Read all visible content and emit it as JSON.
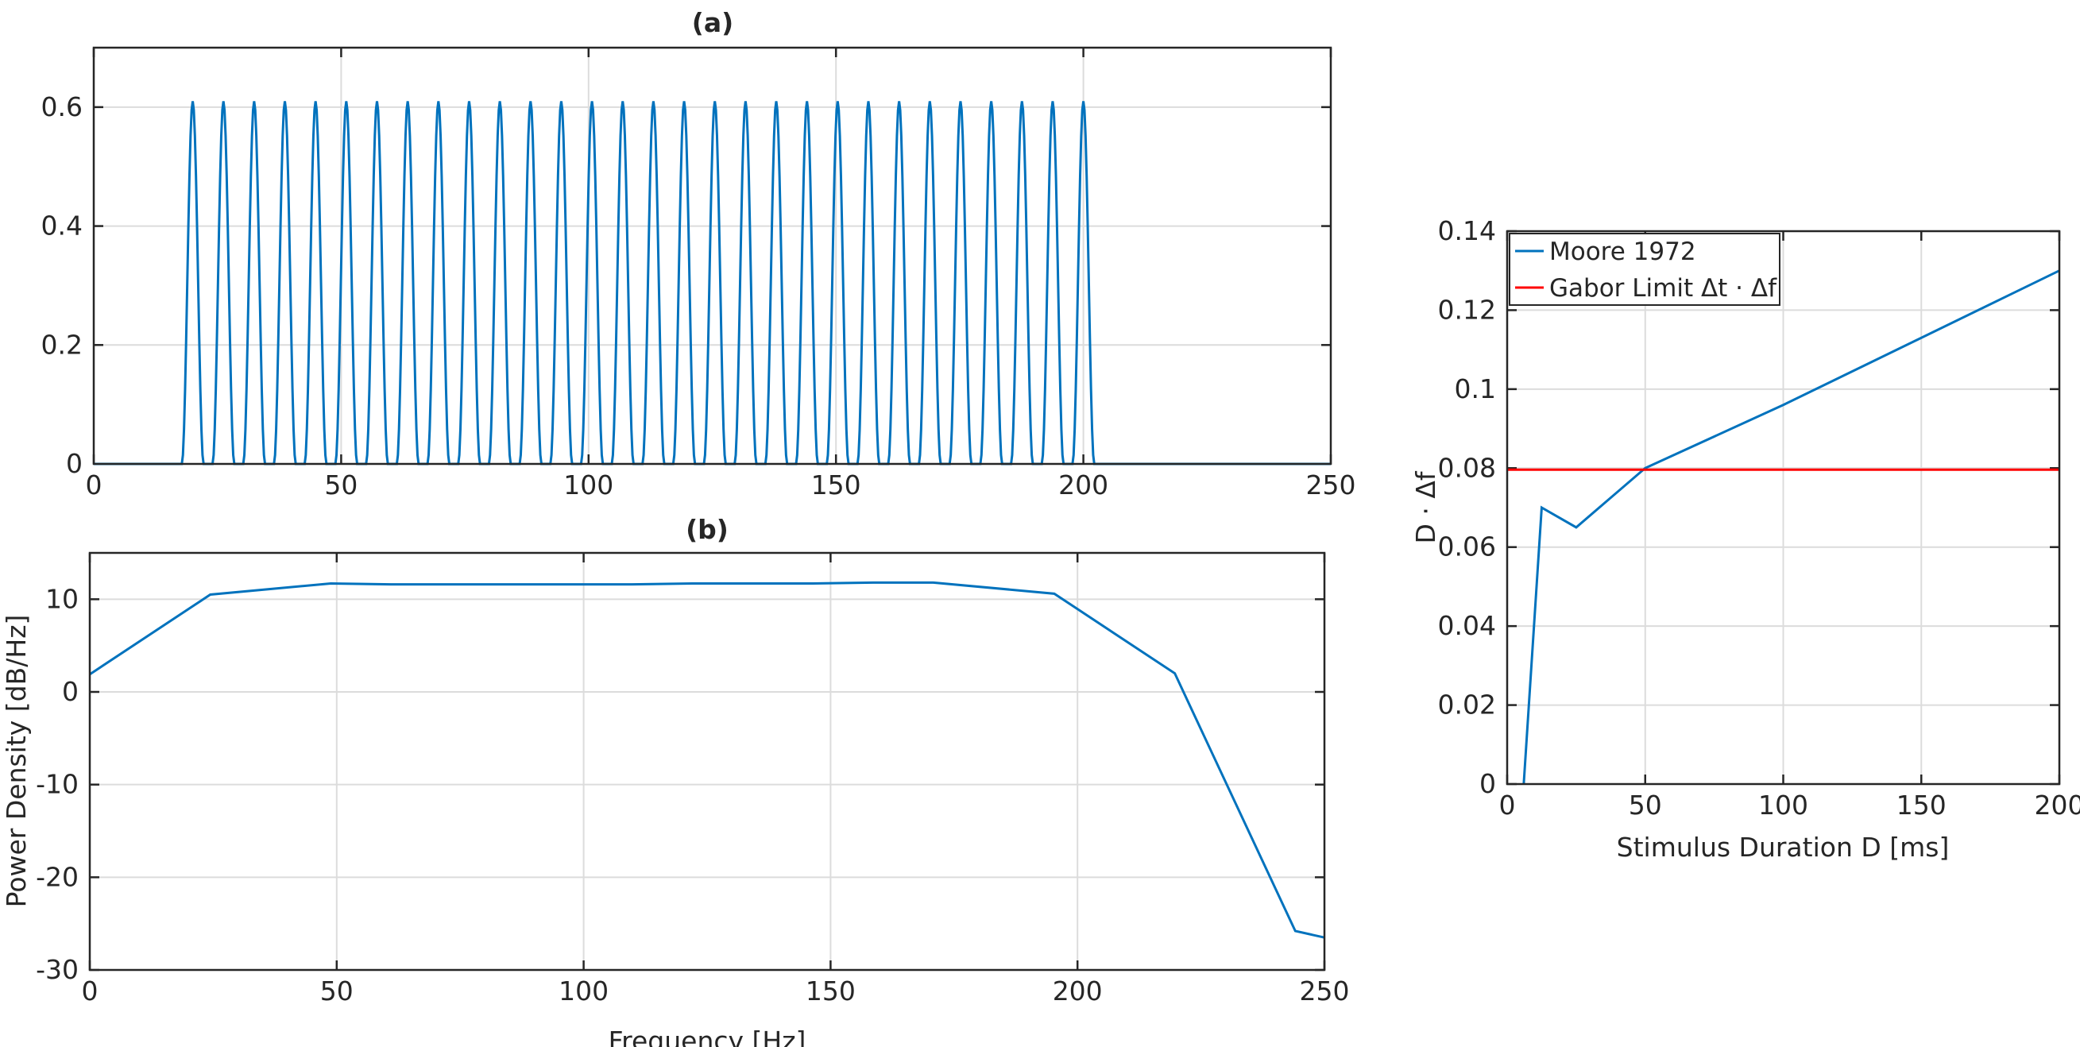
{
  "chart_data": [
    {
      "id": "a",
      "type": "line",
      "title": "(a)",
      "xlabel": "",
      "ylabel": "",
      "xlim": [
        0,
        250
      ],
      "ylim": [
        0,
        0.7
      ],
      "xticks": [
        0,
        50,
        100,
        150,
        200,
        250
      ],
      "yticks": [
        0,
        0.2,
        0.4,
        0.6
      ],
      "xtick_labels": [
        "0",
        "50",
        "100",
        "150",
        "200",
        "250"
      ],
      "ytick_labels": [
        "0",
        "0.2",
        "0.4",
        "0.6"
      ],
      "grid": true,
      "color": "#0072BD",
      "pulse_train": {
        "first_peak_x": 20,
        "last_peak_x": 200,
        "peak_count": 30,
        "peak_height": 0.61,
        "pulse_halfwidth": 2.2,
        "baseline": 0
      }
    },
    {
      "id": "b",
      "type": "line",
      "title": "(b)",
      "xlabel": "Frequency [Hz]",
      "ylabel": "Power Density [dB/Hz]",
      "xlim": [
        0,
        250
      ],
      "ylim": [
        -30,
        15
      ],
      "xticks": [
        0,
        50,
        100,
        150,
        200,
        250
      ],
      "yticks": [
        -30,
        -20,
        -10,
        0,
        10
      ],
      "xtick_labels": [
        "0",
        "50",
        "100",
        "150",
        "200",
        "250"
      ],
      "ytick_labels": [
        "-30",
        "-20",
        "-10",
        "0",
        "10"
      ],
      "grid": true,
      "color": "#0072BD",
      "x": [
        0,
        24.4,
        48.8,
        61,
        73.2,
        97.6,
        109.8,
        122,
        146.4,
        158.6,
        170.8,
        195.3,
        219.7,
        244.1,
        250
      ],
      "y": [
        1.9,
        10.5,
        11.7,
        11.6,
        11.6,
        11.6,
        11.6,
        11.7,
        11.7,
        11.8,
        11.8,
        10.6,
        2.0,
        -25.8,
        -26.5
      ]
    },
    {
      "id": "c",
      "type": "line",
      "title": "",
      "xlabel": "Stimulus Duration D [ms]",
      "ylabel": "D · Δf",
      "xlim": [
        0,
        200
      ],
      "ylim": [
        0,
        0.14
      ],
      "xticks": [
        0,
        50,
        100,
        150,
        200
      ],
      "yticks": [
        0,
        0.02,
        0.04,
        0.06,
        0.08,
        0.1,
        0.12,
        0.14
      ],
      "xtick_labels": [
        "0",
        "50",
        "100",
        "150",
        "200"
      ],
      "ytick_labels": [
        "0",
        "0.02",
        "0.04",
        "0.06",
        "0.08",
        "0.1",
        "0.12",
        "0.14"
      ],
      "grid": true,
      "legend_position": "top-left",
      "series": [
        {
          "name": "Moore 1972",
          "color": "#0072BD",
          "x": [
            6,
            12.5,
            25,
            50,
            100,
            200
          ],
          "y": [
            0,
            0.07,
            0.065,
            0.08,
            0.096,
            0.13
          ]
        },
        {
          "name": "Gabor Limit Δt · Δf",
          "color": "#FF0000",
          "x": [
            0,
            200
          ],
          "y": [
            0.0796,
            0.0796
          ]
        }
      ]
    }
  ]
}
